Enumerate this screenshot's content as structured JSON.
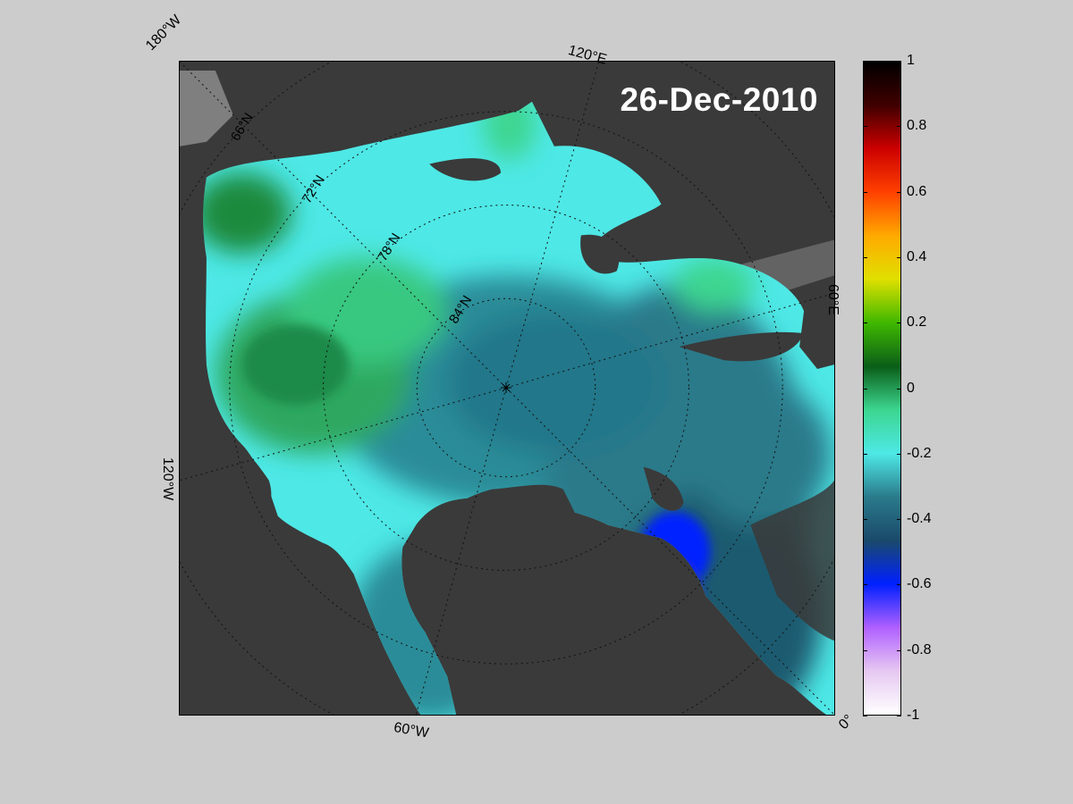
{
  "date": "26-Dec-2010",
  "longitude_labels": {
    "lon_180W": "180°W",
    "lon_120E": "120°E",
    "lon_60E": "60°E",
    "lon_0": "0°",
    "lon_60W": "60°W",
    "lon_120W": "120°W"
  },
  "latitude_labels": {
    "lat_66N": "66°N",
    "lat_72N": "72°N",
    "lat_78N": "78°N",
    "lat_84N": "84°N"
  },
  "colorbar": {
    "min": -1,
    "max": 1,
    "ticks": [
      {
        "value": 1,
        "label": "1"
      },
      {
        "value": 0.8,
        "label": "0.8"
      },
      {
        "value": 0.6,
        "label": "0.6"
      },
      {
        "value": 0.4,
        "label": "0.4"
      },
      {
        "value": 0.2,
        "label": "0.2"
      },
      {
        "value": 0,
        "label": "0"
      },
      {
        "value": -0.2,
        "label": "-0.2"
      },
      {
        "value": -0.4,
        "label": "-0.4"
      },
      {
        "value": -0.6,
        "label": "-0.6"
      },
      {
        "value": -0.8,
        "label": "-0.8"
      },
      {
        "value": -1,
        "label": "-1"
      }
    ],
    "colors": [
      "#ffffff",
      "#e6c8f2",
      "#b060ff",
      "#0020ff",
      "#1a4a6a",
      "#2a7a8a",
      "#4ee8e6",
      "#3cd690",
      "#0a5e18",
      "#3fb800",
      "#e0e000",
      "#ffaa00",
      "#ff4000",
      "#cc0000",
      "#400000",
      "#000000"
    ]
  },
  "colors": {
    "land": "#3a3a3a",
    "land_other": "#7f7f7f",
    "background": "#cccccc"
  }
}
